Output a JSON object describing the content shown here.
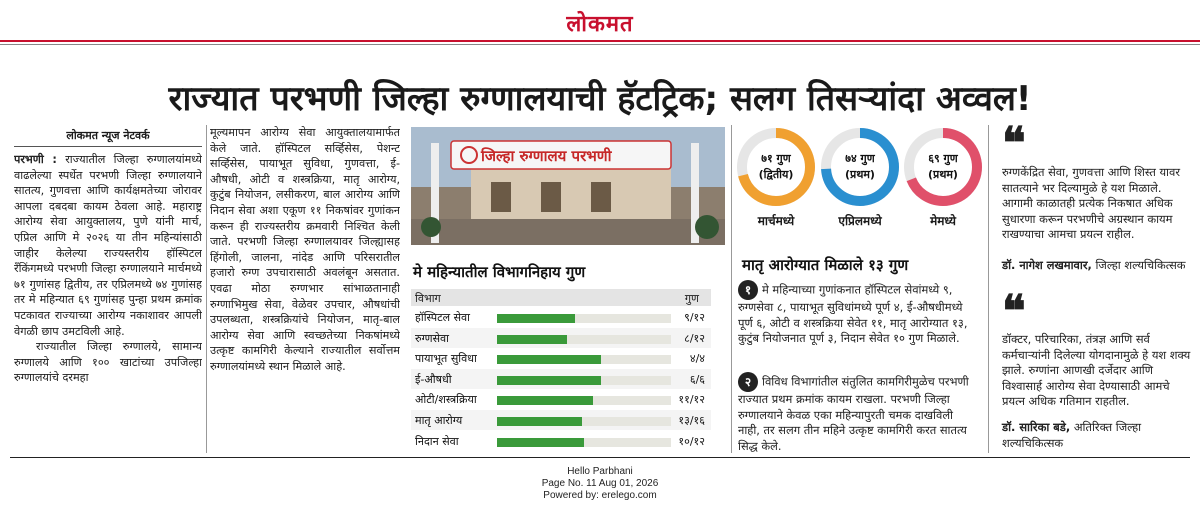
{
  "masthead": {
    "logo": "लोकमत"
  },
  "headline": "राज्यात परभणी जिल्हा रुग्णालयाची हॅटट्रिक; सलग तिसऱ्यांदा अव्वल!",
  "byline": "लोकमत न्यूज नेटवर्क",
  "col1": {
    "dateline": "परभणी :",
    "p1": "राज्यातील जिल्हा रुग्णालयांमध्ये वाढलेल्या स्पर्धेत परभणी जिल्हा रुग्णालयाने सातत्य, गुणवत्ता आणि कार्यक्षमतेच्या जोरावर आपला दबदबा कायम ठेवला आहे. महाराष्ट्र आरोग्य सेवा आयुक्तालय, पुणे यांनी मार्च, एप्रिल आणि मे २०२६ या तीन महिन्यांसाठी जाहीर केलेल्या राज्यस्तरीय हॉस्पिटल रँकिंगमध्ये परभणी जिल्हा रुग्णालयाने मार्चमध्ये ७१ गुणांसह द्वितीय, तर एप्रिलमध्ये ७४ गुणांसह तर मे महिन्यात ६९ गुणांसह पुन्हा प्रथम क्रमांक पटकावत राज्याच्या आरोग्य नकाशावर आपली वेगळी छाप उमटविली आहे.",
    "p2": "राज्यातील जिल्हा रुग्णालये, सामान्य रुग्णालये आणि १०० खाटांच्या उपजिल्हा रुग्णालयांचे दरमहा"
  },
  "col2": {
    "text": "मूल्यमापन आरोग्य सेवा आयुक्तालयामार्फत केले जाते. हॉस्पिटल सर्व्हिसेस, पेशन्ट सर्व्हिसेस, पायाभूत सुविधा, गुणवत्ता, ई-औषधी, ओटी व शस्त्रक्रिया, मातृ आरोग्य, कुटुंब नियोजन, लसीकरण, बाल आरोग्य आणि निदान सेवा अशा एकूण ११ निकषांवर गुणांकन करून ही राज्यस्तरीय क्रमवारी निश्चित केली जाते. परभणी जिल्हा रुग्णालयावर जिल्ह्यासह हिंगोली, जालना, नांदेड आणि परिसरातील हजारो रुग्ण उपचारासाठी अवलंबून असतात. एवढा मोठा रुग्णभार सांभाळतानाही रुग्णाभिमुख सेवा, वेळेवर उपचार, औषधांची उपलब्धता, शस्त्रक्रियांचे नियोजन, मातृ-बाल आरोग्य सेवा आणि स्वच्छतेच्या निकषांमध्ये उत्कृष्ट कामगिरी केल्याने राज्यातील सर्वोत्तम रुग्णालयांमध्ये स्थान मिळाले आहे."
  },
  "photo": {
    "sign": "जिल्हा रुग्णालय परभणी"
  },
  "table": {
    "title": "मे महिन्यातील विभागनिहाय गुण",
    "col_dept": "विभाग",
    "col_score": "गुण",
    "rows": [
      {
        "label": "हॉस्पिटल सेवा",
        "score": "९/१२",
        "fraction": 0.75
      },
      {
        "label": "रुग्णसेवा",
        "score": "८/१२",
        "fraction": 0.667
      },
      {
        "label": "पायाभूत सुविधा",
        "score": "४/४",
        "fraction": 1.0
      },
      {
        "label": "ई-औषधी",
        "score": "६/६",
        "fraction": 1.0
      },
      {
        "label": "ओटी/शस्त्रक्रिया",
        "score": "११/१२",
        "fraction": 0.917
      },
      {
        "label": "मातृ आरोग्य",
        "score": "१३/१६",
        "fraction": 0.8125
      },
      {
        "label": "निदान सेवा",
        "score": "१०/१२",
        "fraction": 0.833
      }
    ]
  },
  "donuts": [
    {
      "line1": "७१ गुण",
      "line2": "(द्वितीय)",
      "caption": "मार्चमध्ये",
      "color": "#f0a030",
      "fraction": 0.71
    },
    {
      "line1": "७४ गुण",
      "line2": "(प्रथम)",
      "caption": "एप्रिलमध्ये",
      "color": "#2a8fd0",
      "fraction": 0.74
    },
    {
      "line1": "६९ गुण",
      "line2": "(प्रथम)",
      "caption": "मेमध्ये",
      "color": "#e0506a",
      "fraction": 0.69
    }
  ],
  "maternal": {
    "title": "मातृ आरोग्यात मिळाले १३ गुण",
    "n1": "१",
    "p1": "मे महिन्याच्या गुणांकनात हॉस्पिटल सेवांमध्ये ९, रुग्णसेवा ८, पायाभूत सुविधांमध्ये पूर्ण ४, ई-औषधीमध्ये पूर्ण ६, ओटी व शस्त्रक्रिया सेवेत ११, मातृ आरोग्यात १३, कुटुंब नियोजनात पूर्ण ३, निदान सेवेत १० गुण मिळाले.",
    "n2": "२",
    "p2": "विविध विभागांतील संतुलित कामगिरीमुळेच परभणी राज्यात प्रथम क्रमांक कायम राखला. परभणी जिल्हा रुग्णालयाने केवळ एका महिन्यापुरती चमक दाखविली नाही, तर सलग तीन महिने उत्कृष्ट कामगिरी करत सातत्य सिद्ध केले."
  },
  "quotes": [
    {
      "text": "रुग्णकेंद्रित सेवा, गुणवत्ता आणि शिस्त यावर सातत्याने भर दिल्यामुळे हे यश मिळाले. आगामी काळातही प्रत्येक निकषात अधिक सुधारणा करून परभणीचे अग्रस्थान कायम राखण्याचा आमचा प्रयत्न राहील.",
      "name": "डॉ. नागेश लखमावार,",
      "role": "जिल्हा शल्यचिकित्सक"
    },
    {
      "text": "डॉक्टर, परिचारिका, तंत्रज्ञ आणि सर्व कर्मचाऱ्यांनी दिलेल्या योगदानामुळे हे यश शक्य झाले. रुग्णांना आणखी दर्जेदार आणि विश्वासार्ह आरोग्य सेवा देण्यासाठी आमचे प्रयत्न अधिक गतिमान राहतील.",
      "name": "डॉ. सारिका बडे,",
      "role": "अतिरिक्त जिल्हा शल्यचिकित्सक"
    }
  ],
  "footer": {
    "line1": "Hello Parbhani",
    "line2": "Page No. 11  Aug 01, 2026",
    "line3": "Powered by: erelego.com"
  }
}
